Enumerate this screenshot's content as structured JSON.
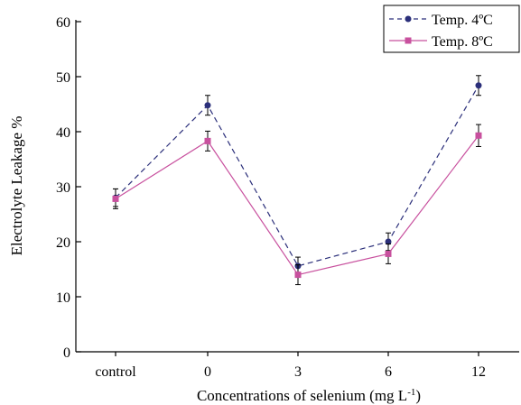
{
  "chart_data": {
    "type": "line",
    "categories": [
      "control",
      "0",
      "3",
      "6",
      "12"
    ],
    "xlabel": "Concentrations of selenium (mg L",
    "xlabel_sup": "-1",
    "xlabel_suffix": ")",
    "ylabel": "Electrolyte Leakage %",
    "ylim": [
      0,
      60
    ],
    "yticks": [
      "0",
      "10",
      "20",
      "30",
      "40",
      "50",
      "60"
    ],
    "grid": false,
    "legend_position": "top-right",
    "series": [
      {
        "name": "Temp. 4ºC",
        "color": "#2b2f7a",
        "line_style": "dashed",
        "marker": "circle",
        "values": [
          28.0,
          44.8,
          15.6,
          20.0,
          48.4
        ],
        "errors": [
          1.6,
          1.8,
          1.6,
          1.6,
          1.8
        ]
      },
      {
        "name": "Temp. 8ºC",
        "color": "#c8509e",
        "line_style": "solid",
        "marker": "square",
        "values": [
          27.8,
          38.3,
          14.0,
          17.8,
          39.3
        ],
        "errors": [
          1.8,
          1.8,
          1.8,
          1.8,
          2.0
        ]
      }
    ]
  }
}
